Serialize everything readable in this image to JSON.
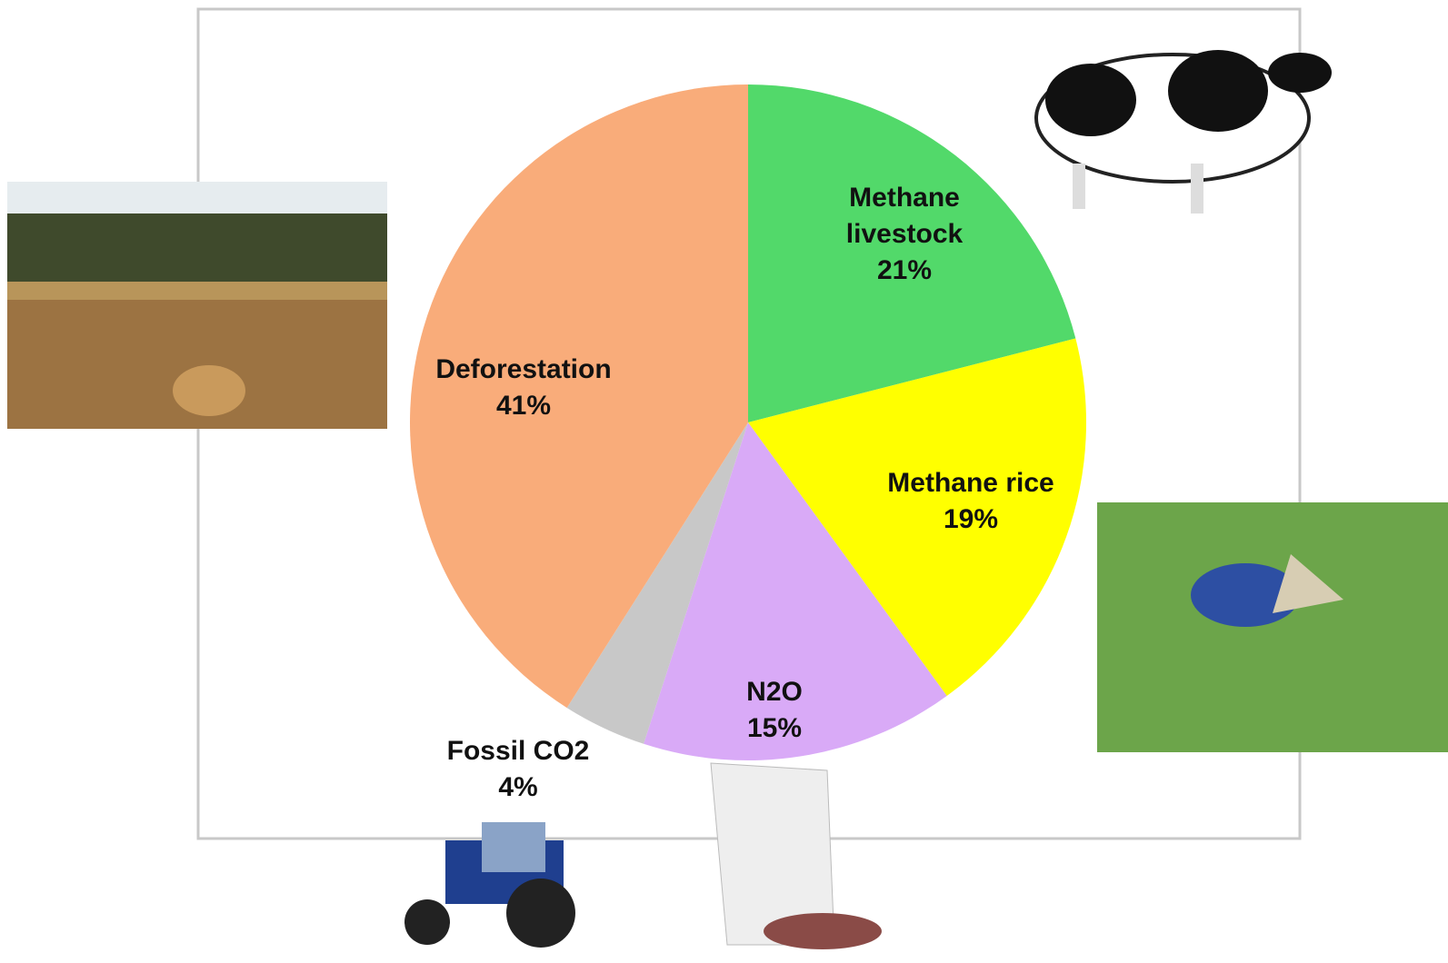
{
  "chart_data": {
    "type": "pie",
    "categories": [
      "Methane livestock",
      "Methane rice",
      "N2O",
      "Fossil CO2",
      "Deforestation"
    ],
    "values": [
      21,
      19,
      15,
      4,
      41
    ],
    "value_labels": [
      "21%",
      "19%",
      "15%",
      "4%",
      "41%"
    ],
    "colors": [
      "#52d96a",
      "#ffff00",
      "#d9aaf7",
      "#c8c8c8",
      "#f9ac7a"
    ]
  }
}
